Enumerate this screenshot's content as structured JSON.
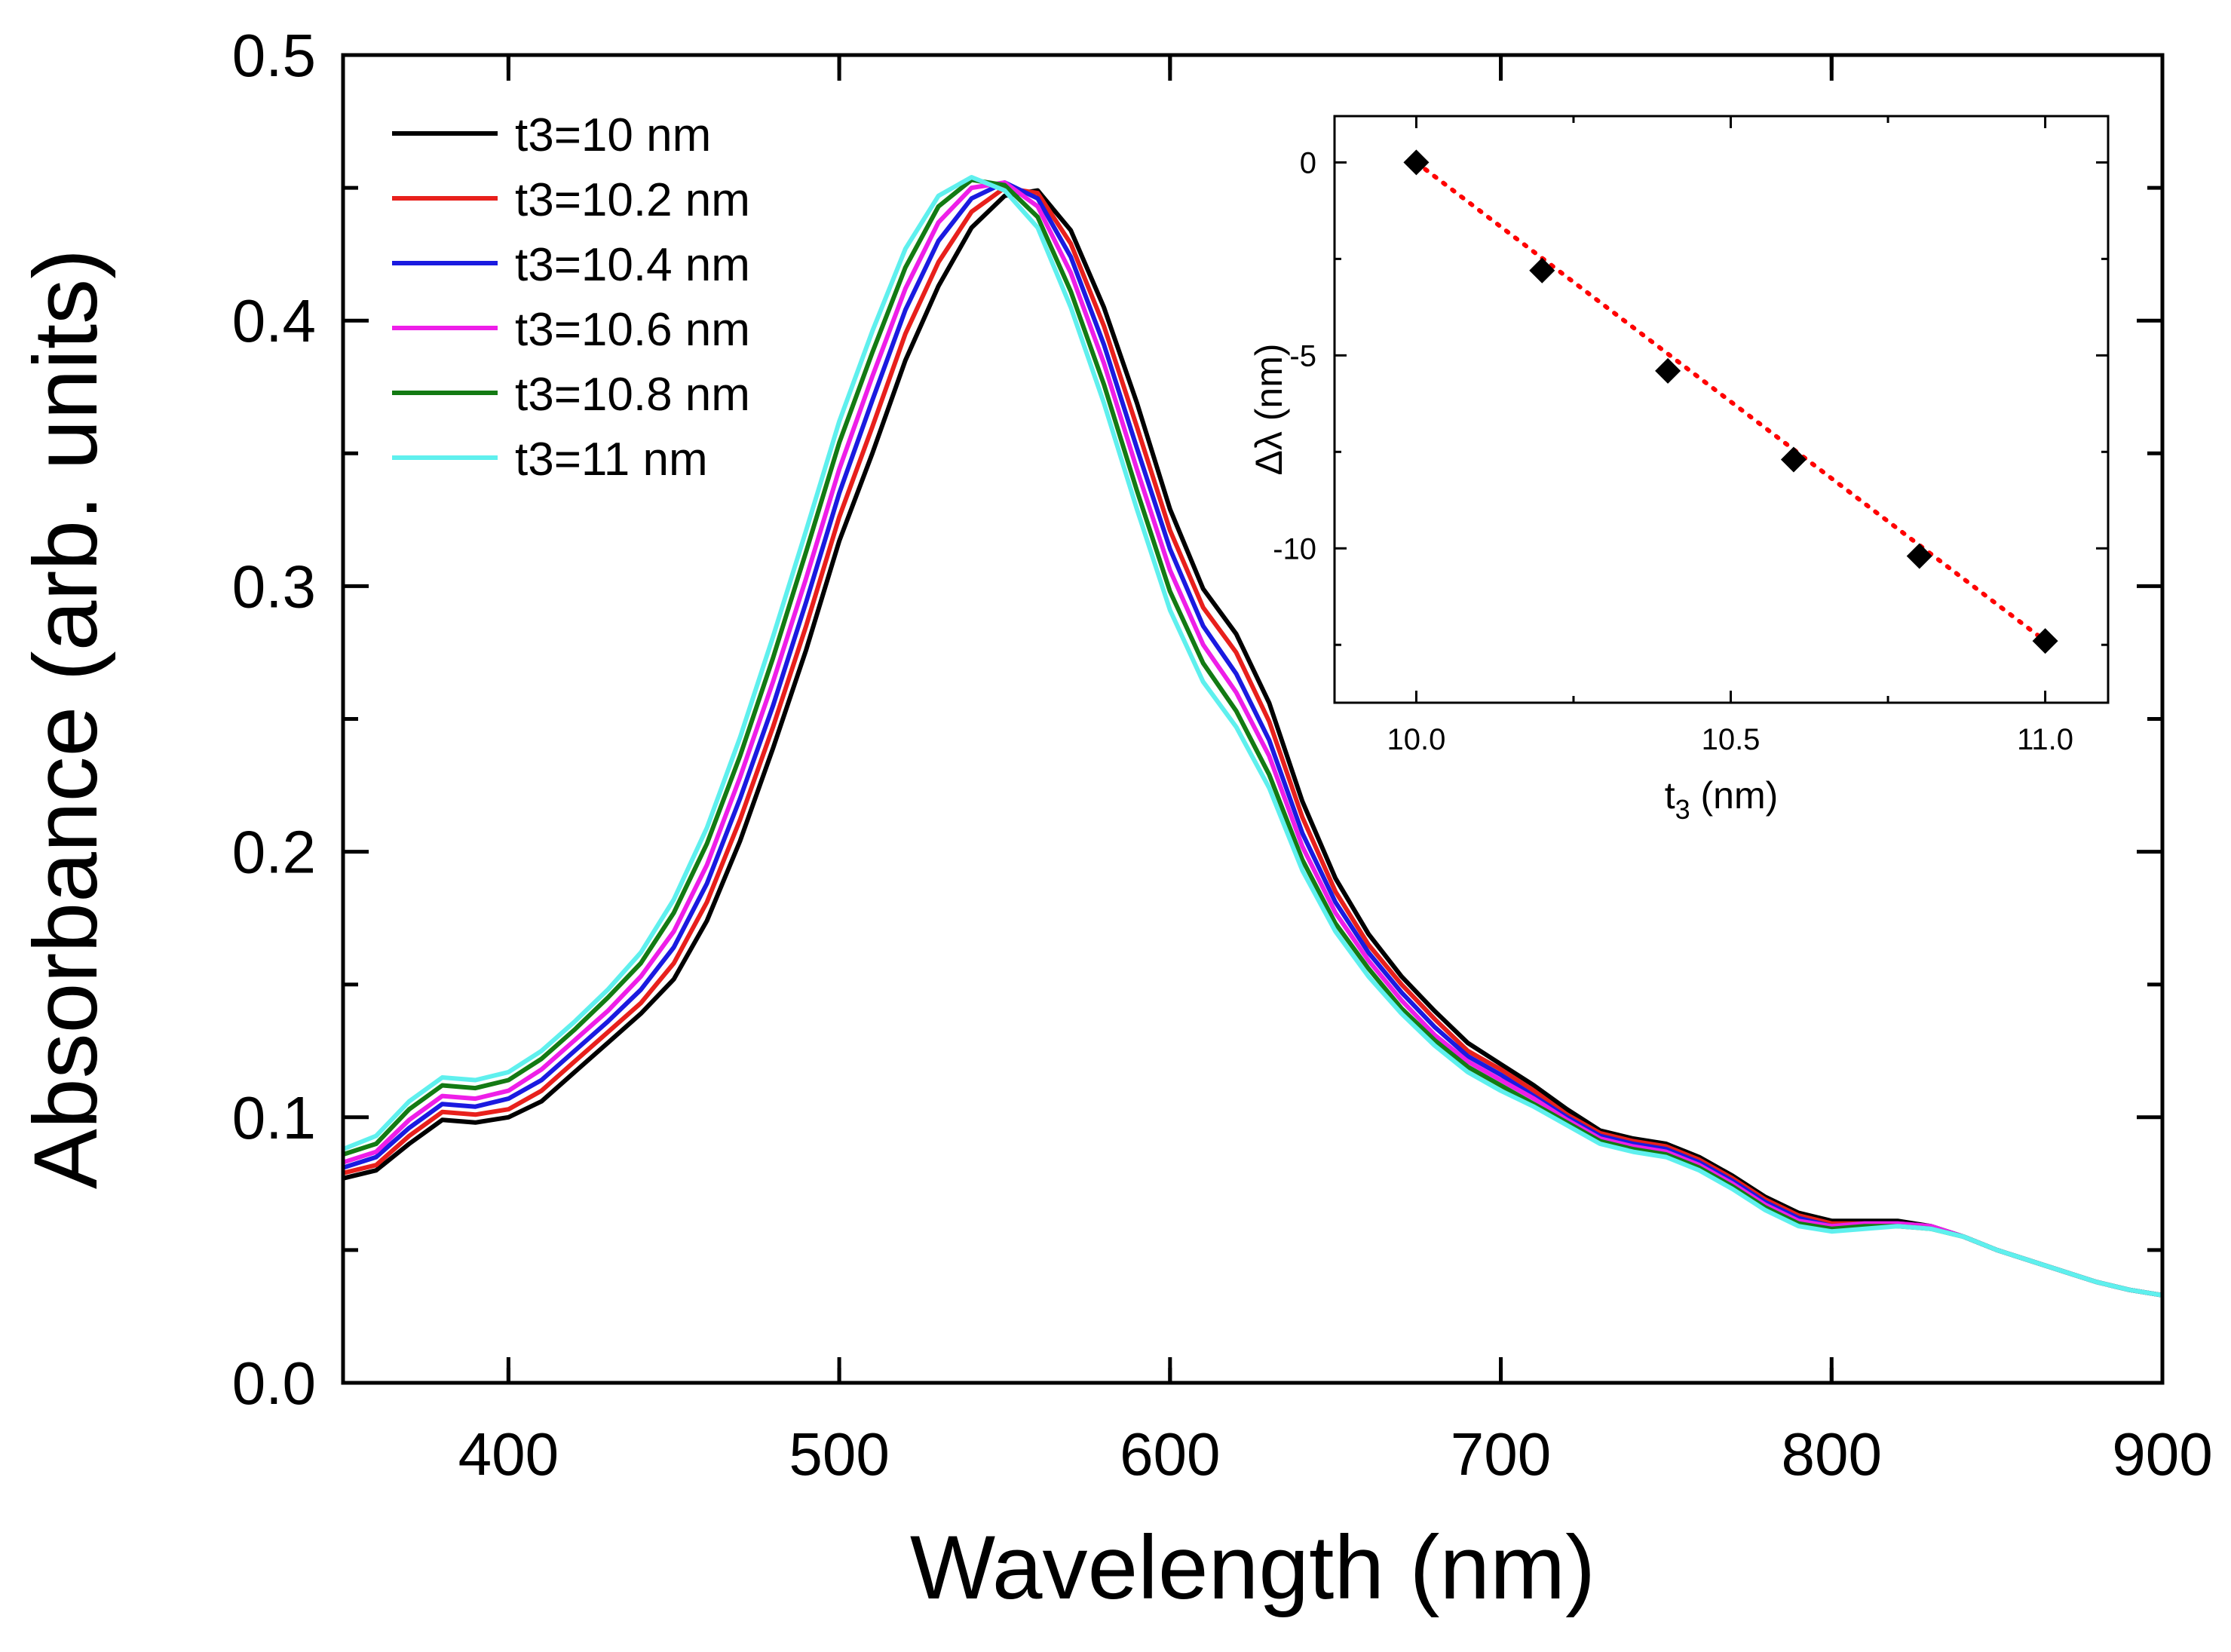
{
  "chart_data": [
    {
      "type": "line",
      "title": "",
      "xlabel": "Wavelength (nm)",
      "ylabel": "Absorbance (arb. units)",
      "xlim": [
        350,
        900
      ],
      "ylim": [
        0.0,
        0.5
      ],
      "x_ticks": [
        400,
        500,
        600,
        700,
        800,
        900
      ],
      "x_tick_labels": [
        "400",
        "500",
        "600",
        "700",
        "800",
        "900"
      ],
      "y_ticks": [
        0.0,
        0.1,
        0.2,
        0.3,
        0.4,
        0.5
      ],
      "y_tick_labels": [
        "0.0",
        "0.1",
        "0.2",
        "0.3",
        "0.4",
        "0.5"
      ],
      "legend_position": "top-left",
      "x": [
        350,
        360,
        370,
        380,
        390,
        400,
        410,
        420,
        430,
        440,
        450,
        460,
        470,
        480,
        490,
        500,
        510,
        520,
        530,
        540,
        550,
        560,
        570,
        580,
        590,
        600,
        610,
        620,
        630,
        640,
        650,
        660,
        670,
        680,
        690,
        700,
        710,
        720,
        730,
        740,
        750,
        760,
        770,
        780,
        790,
        800,
        810,
        820,
        830,
        840,
        850,
        860,
        870,
        880,
        890,
        900
      ],
      "series": [
        {
          "name": "t3=10 nm",
          "color": "#000000",
          "values": [
            0.077,
            0.08,
            0.09,
            0.099,
            0.098,
            0.1,
            0.106,
            0.117,
            0.128,
            0.139,
            0.152,
            0.174,
            0.204,
            0.239,
            0.276,
            0.317,
            0.35,
            0.385,
            0.413,
            0.435,
            0.447,
            0.449,
            0.434,
            0.405,
            0.369,
            0.329,
            0.299,
            0.282,
            0.256,
            0.219,
            0.19,
            0.169,
            0.153,
            0.14,
            0.128,
            0.12,
            0.112,
            0.103,
            0.095,
            0.092,
            0.09,
            0.085,
            0.078,
            0.07,
            0.064,
            0.061,
            0.061,
            0.061,
            0.059,
            0.055,
            0.05,
            0.046,
            0.042,
            0.038,
            0.035,
            0.033
          ]
        },
        {
          "name": "t3=10.2 nm",
          "color": "#e8201c",
          "values": [
            0.079,
            0.082,
            0.093,
            0.102,
            0.101,
            0.103,
            0.11,
            0.121,
            0.132,
            0.143,
            0.158,
            0.181,
            0.212,
            0.247,
            0.285,
            0.326,
            0.36,
            0.395,
            0.422,
            0.441,
            0.45,
            0.448,
            0.429,
            0.398,
            0.36,
            0.321,
            0.292,
            0.275,
            0.249,
            0.213,
            0.185,
            0.165,
            0.15,
            0.137,
            0.125,
            0.118,
            0.11,
            0.101,
            0.094,
            0.091,
            0.089,
            0.084,
            0.077,
            0.069,
            0.063,
            0.06,
            0.06,
            0.06,
            0.059,
            0.055,
            0.05,
            0.046,
            0.042,
            0.038,
            0.035,
            0.033
          ]
        },
        {
          "name": "t3=10.4 nm",
          "color": "#1a1ae0",
          "values": [
            0.081,
            0.085,
            0.096,
            0.105,
            0.104,
            0.107,
            0.114,
            0.125,
            0.136,
            0.148,
            0.164,
            0.188,
            0.22,
            0.255,
            0.294,
            0.335,
            0.37,
            0.404,
            0.43,
            0.446,
            0.452,
            0.446,
            0.424,
            0.391,
            0.352,
            0.314,
            0.285,
            0.267,
            0.242,
            0.207,
            0.181,
            0.162,
            0.147,
            0.134,
            0.123,
            0.116,
            0.108,
            0.1,
            0.093,
            0.09,
            0.088,
            0.083,
            0.076,
            0.068,
            0.062,
            0.059,
            0.06,
            0.06,
            0.059,
            0.055,
            0.05,
            0.046,
            0.042,
            0.038,
            0.035,
            0.033
          ]
        },
        {
          "name": "t3=10.6 nm",
          "color": "#ee1ee8",
          "values": [
            0.083,
            0.087,
            0.099,
            0.108,
            0.107,
            0.11,
            0.118,
            0.129,
            0.14,
            0.153,
            0.17,
            0.195,
            0.228,
            0.264,
            0.303,
            0.344,
            0.379,
            0.412,
            0.437,
            0.45,
            0.452,
            0.443,
            0.418,
            0.384,
            0.344,
            0.306,
            0.278,
            0.26,
            0.236,
            0.202,
            0.177,
            0.159,
            0.144,
            0.131,
            0.121,
            0.114,
            0.107,
            0.099,
            0.092,
            0.089,
            0.087,
            0.082,
            0.075,
            0.067,
            0.061,
            0.059,
            0.06,
            0.06,
            0.059,
            0.055,
            0.05,
            0.046,
            0.042,
            0.038,
            0.035,
            0.033
          ]
        },
        {
          "name": "t3=10.8 nm",
          "color": "#137a13",
          "values": [
            0.086,
            0.09,
            0.103,
            0.112,
            0.111,
            0.114,
            0.122,
            0.133,
            0.145,
            0.158,
            0.177,
            0.203,
            0.236,
            0.273,
            0.313,
            0.354,
            0.388,
            0.42,
            0.443,
            0.453,
            0.451,
            0.439,
            0.411,
            0.376,
            0.336,
            0.298,
            0.271,
            0.253,
            0.229,
            0.197,
            0.173,
            0.156,
            0.141,
            0.129,
            0.119,
            0.112,
            0.105,
            0.098,
            0.091,
            0.088,
            0.086,
            0.081,
            0.074,
            0.066,
            0.06,
            0.058,
            0.059,
            0.059,
            0.058,
            0.055,
            0.05,
            0.046,
            0.042,
            0.038,
            0.035,
            0.033
          ]
        },
        {
          "name": "t3=11 nm",
          "color": "#5ff0ee",
          "values": [
            0.088,
            0.093,
            0.106,
            0.115,
            0.114,
            0.117,
            0.125,
            0.136,
            0.148,
            0.162,
            0.182,
            0.209,
            0.243,
            0.281,
            0.321,
            0.362,
            0.396,
            0.427,
            0.447,
            0.454,
            0.449,
            0.435,
            0.405,
            0.369,
            0.329,
            0.291,
            0.264,
            0.247,
            0.224,
            0.193,
            0.17,
            0.153,
            0.139,
            0.127,
            0.117,
            0.11,
            0.104,
            0.097,
            0.09,
            0.087,
            0.085,
            0.08,
            0.073,
            0.065,
            0.059,
            0.057,
            0.058,
            0.059,
            0.058,
            0.055,
            0.05,
            0.046,
            0.042,
            0.038,
            0.035,
            0.033
          ]
        }
      ]
    },
    {
      "type": "scatter",
      "title": "",
      "xlabel_main": "t",
      "xlabel_sub": "3",
      "xlabel_unit": " (nm)",
      "ylabel": "Δλ (nm)",
      "xlim": [
        9.87,
        11.1
      ],
      "ylim": [
        -14.0,
        1.2
      ],
      "x_ticks": [
        10.0,
        10.5,
        11.0
      ],
      "x_tick_labels": [
        "10.0",
        "10.5",
        "11.0"
      ],
      "y_ticks": [
        0,
        -5,
        -10
      ],
      "y_tick_labels": [
        "0",
        "-5",
        "-10"
      ],
      "marker_color": "#000000",
      "fit_color": "#ff0000",
      "x": [
        10.0,
        10.2,
        10.4,
        10.6,
        10.8,
        11.0
      ],
      "y": [
        0.0,
        -2.8,
        -5.4,
        -7.7,
        -10.2,
        -12.4
      ],
      "fit": [
        [
          10.0,
          0.0
        ],
        [
          11.0,
          -12.4
        ]
      ]
    }
  ]
}
